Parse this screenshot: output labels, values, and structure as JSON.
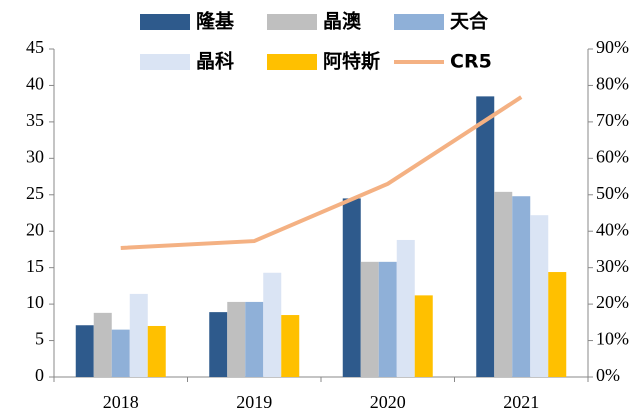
{
  "chart_data": {
    "type": "bar",
    "categories": [
      "2018",
      "2019",
      "2020",
      "2021"
    ],
    "series": [
      {
        "name": "隆基",
        "color": "#2e5a8c",
        "values": [
          7.1,
          8.9,
          24.5,
          38.5
        ]
      },
      {
        "name": "晶澳",
        "color": "#bfbfbf",
        "values": [
          8.8,
          10.3,
          15.8,
          25.4
        ]
      },
      {
        "name": "天合",
        "color": "#8fb0d8",
        "values": [
          6.5,
          10.3,
          15.8,
          24.8
        ]
      },
      {
        "name": "晶科",
        "color": "#dae4f4",
        "values": [
          11.4,
          14.3,
          18.8,
          22.2
        ]
      },
      {
        "name": "阿特斯",
        "color": "#ffc000",
        "values": [
          7.0,
          8.5,
          11.2,
          14.4
        ]
      },
      {
        "name": "CR5",
        "color": "#f4b183",
        "type": "line",
        "axis": "y2",
        "values": [
          35.4,
          37.3,
          53,
          76.8
        ]
      }
    ],
    "ylim": [
      0,
      45
    ],
    "yticks": [
      0,
      5,
      10,
      15,
      20,
      25,
      30,
      35,
      40,
      45
    ],
    "y2lim": [
      0,
      90
    ],
    "y2ticks": [
      {
        "value": 0,
        "label": "0%"
      },
      {
        "value": 10,
        "label": "10%"
      },
      {
        "value": 20,
        "label": "20%"
      },
      {
        "value": 30,
        "label": "30%"
      },
      {
        "value": 40,
        "label": "40%"
      },
      {
        "value": 50,
        "label": "50%"
      },
      {
        "value": 60,
        "label": "60%"
      },
      {
        "value": 70,
        "label": "70%"
      },
      {
        "value": 80,
        "label": "80%"
      },
      {
        "value": 90,
        "label": "90%"
      }
    ]
  }
}
